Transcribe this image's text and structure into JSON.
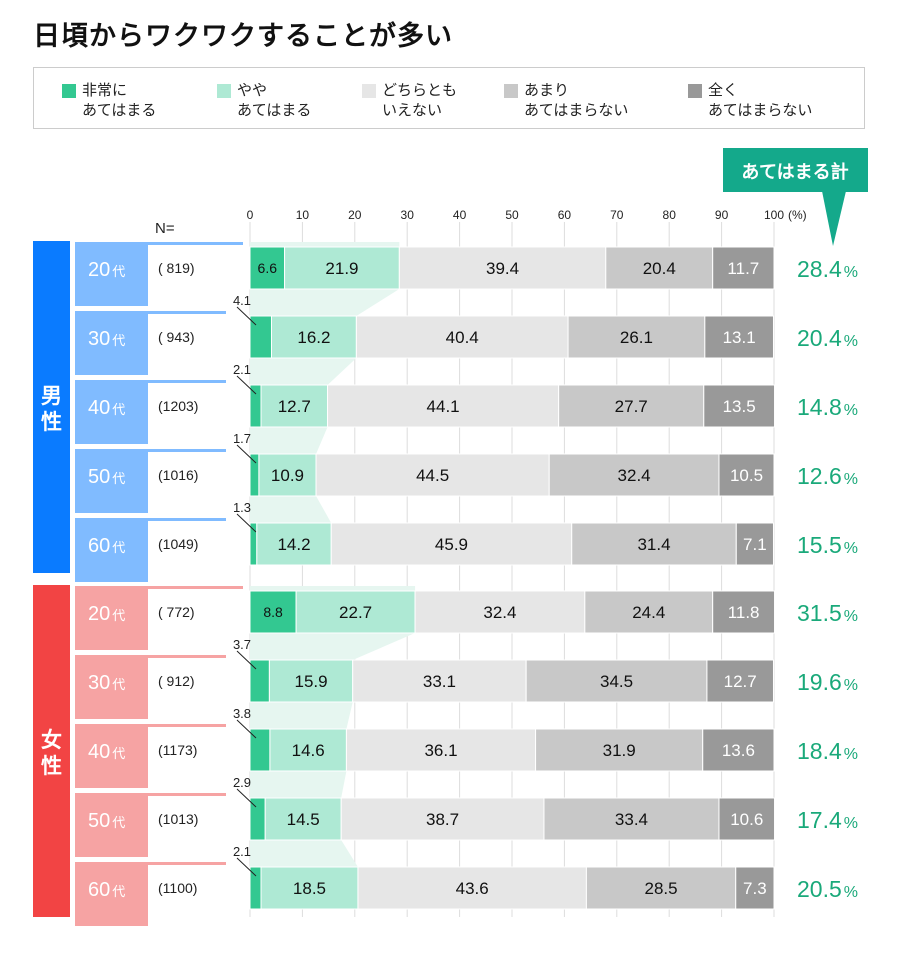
{
  "title": "日頃からワクワクすることが多い",
  "legend": [
    {
      "line1": "非常に",
      "line2": "あてはまる",
      "color": "#33c891"
    },
    {
      "line1": "やや",
      "line2": "あてはまる",
      "color": "#aee9d4"
    },
    {
      "line1": "どちらとも",
      "line2": "いえない",
      "color": "#e6e6e6"
    },
    {
      "line1": "あまり",
      "line2": "あてはまらない",
      "color": "#c8c8c8"
    },
    {
      "line1": "全く",
      "line2": "あてはまらない",
      "color": "#999999"
    }
  ],
  "chart_data": {
    "type": "bar",
    "orientation": "horizontal-stacked-100",
    "title": "日頃からワクワクすることが多い",
    "n_label": "N=",
    "x_ticks": [
      "0",
      "10",
      "20",
      "30",
      "40",
      "50",
      "60",
      "70",
      "80",
      "90",
      "100"
    ],
    "x_unit": "(%)",
    "xlim": [
      0,
      100
    ],
    "grid": true,
    "legend_position": "top",
    "total_label": "あてはまる計",
    "total_color": "#14a98b",
    "series_names": [
      "非常にあてはまる",
      "ややあてはまる",
      "どちらともいえない",
      "あまりあてはまらない",
      "全くあてはまらない"
    ],
    "groups": [
      {
        "name": "男性",
        "color": "#0a7bff",
        "light": "#80bbff",
        "rows": [
          {
            "age": "20",
            "suffix": "代",
            "n": "( 819)",
            "values": [
              6.6,
              21.9,
              39.4,
              20.4,
              11.7
            ],
            "total": "28.4"
          },
          {
            "age": "30",
            "suffix": "代",
            "n": "( 943)",
            "values": [
              4.1,
              16.2,
              40.4,
              26.1,
              13.1
            ],
            "total": "20.4"
          },
          {
            "age": "40",
            "suffix": "代",
            "n": "(1203)",
            "values": [
              2.1,
              12.7,
              44.1,
              27.7,
              13.5
            ],
            "total": "14.8"
          },
          {
            "age": "50",
            "suffix": "代",
            "n": "(1016)",
            "values": [
              1.7,
              10.9,
              44.5,
              32.4,
              10.5
            ],
            "total": "12.6"
          },
          {
            "age": "60",
            "suffix": "代",
            "n": "(1049)",
            "values": [
              1.3,
              14.2,
              45.9,
              31.4,
              7.1
            ],
            "total": "15.5"
          }
        ]
      },
      {
        "name": "女性",
        "color": "#f24444",
        "light": "#f6a3a3",
        "rows": [
          {
            "age": "20",
            "suffix": "代",
            "n": "( 772)",
            "values": [
              8.8,
              22.7,
              32.4,
              24.4,
              11.8
            ],
            "total": "31.5"
          },
          {
            "age": "30",
            "suffix": "代",
            "n": "( 912)",
            "values": [
              3.7,
              15.9,
              33.1,
              34.5,
              12.7
            ],
            "total": "19.6"
          },
          {
            "age": "40",
            "suffix": "代",
            "n": "(1173)",
            "values": [
              3.8,
              14.6,
              36.1,
              31.9,
              13.6
            ],
            "total": "18.4"
          },
          {
            "age": "50",
            "suffix": "代",
            "n": "(1013)",
            "values": [
              2.9,
              14.5,
              38.7,
              33.4,
              10.6
            ],
            "total": "17.4"
          },
          {
            "age": "60",
            "suffix": "代",
            "n": "(1100)",
            "values": [
              2.1,
              18.5,
              43.6,
              28.5,
              7.3
            ],
            "total": "20.5"
          }
        ]
      }
    ]
  }
}
